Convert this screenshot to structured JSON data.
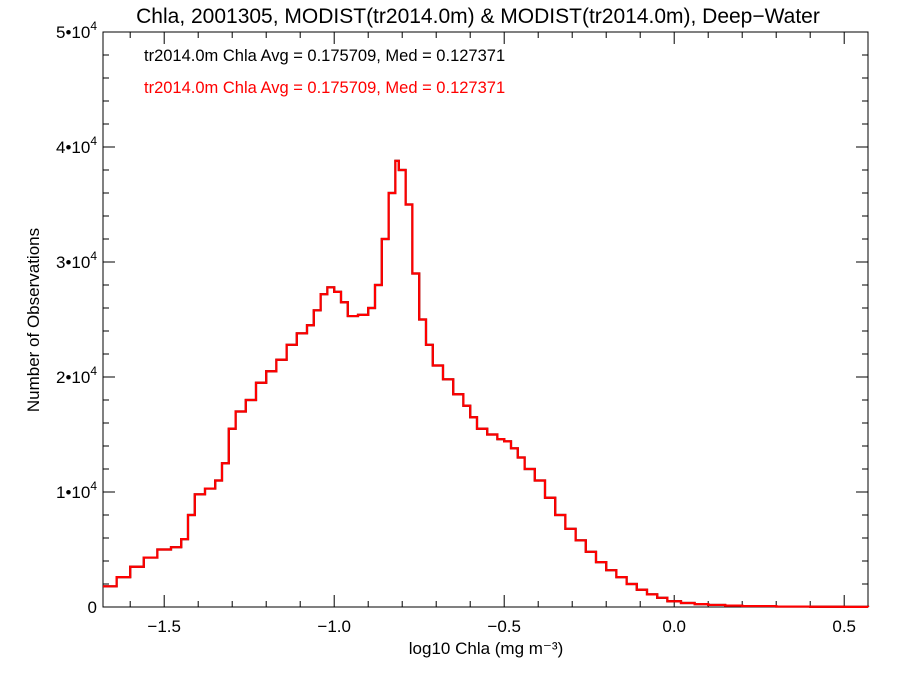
{
  "chart_data": {
    "type": "line",
    "title": "Chla, 2001305, MODIST(tr2014.0m) & MODIST(tr2014.0m), Deep−Water",
    "xlabel": "log10 Chla (mg m⁻³)",
    "ylabel": "Number of Observations",
    "xlim": [
      -1.68,
      0.57
    ],
    "ylim": [
      0,
      50000
    ],
    "grid": false,
    "x_ticks": [
      {
        "value": -1.5,
        "label": "−1.5"
      },
      {
        "value": -1.0,
        "label": "−1.0"
      },
      {
        "value": -0.5,
        "label": "−0.5"
      },
      {
        "value": 0.0,
        "label": "0.0"
      },
      {
        "value": 0.5,
        "label": "0.5"
      }
    ],
    "y_ticks": [
      {
        "value": 0,
        "label": "0",
        "exp": ""
      },
      {
        "value": 10000,
        "label": "1•10",
        "exp": "4"
      },
      {
        "value": 20000,
        "label": "2•10",
        "exp": "4"
      },
      {
        "value": 30000,
        "label": "3•10",
        "exp": "4"
      },
      {
        "value": 40000,
        "label": "4•10",
        "exp": "4"
      },
      {
        "value": 50000,
        "label": "5•10",
        "exp": "4"
      }
    ],
    "annotations": [
      {
        "text": "tr2014.0m Chla Avg = 0.175709, Med = 0.127371",
        "color": "#000000"
      },
      {
        "text": "tr2014.0m Chla Avg = 0.175709, Med = 0.127371",
        "color": "#ff0000"
      }
    ],
    "series": [
      {
        "color": "#000000",
        "step": true,
        "points": [
          [
            -1.68,
            1800
          ],
          [
            -1.64,
            2600
          ],
          [
            -1.6,
            3500
          ],
          [
            -1.56,
            4300
          ],
          [
            -1.52,
            5000
          ],
          [
            -1.48,
            5200
          ],
          [
            -1.45,
            5900
          ],
          [
            -1.43,
            8000
          ],
          [
            -1.41,
            9800
          ],
          [
            -1.38,
            10300
          ],
          [
            -1.35,
            11000
          ],
          [
            -1.33,
            12500
          ],
          [
            -1.31,
            15500
          ],
          [
            -1.29,
            17000
          ],
          [
            -1.26,
            18000
          ],
          [
            -1.23,
            19500
          ],
          [
            -1.2,
            20500
          ],
          [
            -1.17,
            21500
          ],
          [
            -1.14,
            22800
          ],
          [
            -1.11,
            23800
          ],
          [
            -1.08,
            24500
          ],
          [
            -1.06,
            25800
          ],
          [
            -1.04,
            27200
          ],
          [
            -1.02,
            27800
          ],
          [
            -1.0,
            27400
          ],
          [
            -0.98,
            26500
          ],
          [
            -0.96,
            25300
          ],
          [
            -0.93,
            25400
          ],
          [
            -0.9,
            26000
          ],
          [
            -0.88,
            28000
          ],
          [
            -0.86,
            32000
          ],
          [
            -0.84,
            36000
          ],
          [
            -0.82,
            38800
          ],
          [
            -0.81,
            38000
          ],
          [
            -0.79,
            35000
          ],
          [
            -0.77,
            29000
          ],
          [
            -0.75,
            25000
          ],
          [
            -0.73,
            22800
          ],
          [
            -0.71,
            21000
          ],
          [
            -0.68,
            19800
          ],
          [
            -0.65,
            18500
          ],
          [
            -0.62,
            17500
          ],
          [
            -0.6,
            16500
          ],
          [
            -0.58,
            15500
          ],
          [
            -0.55,
            15000
          ],
          [
            -0.52,
            14600
          ],
          [
            -0.5,
            14400
          ],
          [
            -0.48,
            13800
          ],
          [
            -0.46,
            13000
          ],
          [
            -0.44,
            12000
          ],
          [
            -0.41,
            11000
          ],
          [
            -0.38,
            9500
          ],
          [
            -0.35,
            8000
          ],
          [
            -0.32,
            6800
          ],
          [
            -0.29,
            5800
          ],
          [
            -0.26,
            4800
          ],
          [
            -0.23,
            3900
          ],
          [
            -0.2,
            3200
          ],
          [
            -0.17,
            2600
          ],
          [
            -0.14,
            2000
          ],
          [
            -0.11,
            1500
          ],
          [
            -0.08,
            1100
          ],
          [
            -0.05,
            800
          ],
          [
            -0.02,
            500
          ],
          [
            0.02,
            350
          ],
          [
            0.06,
            250
          ],
          [
            0.1,
            180
          ],
          [
            0.15,
            120
          ],
          [
            0.2,
            80
          ],
          [
            0.3,
            40
          ],
          [
            0.4,
            20
          ],
          [
            0.5,
            8
          ],
          [
            0.57,
            5
          ]
        ]
      },
      {
        "color": "#ff0000",
        "step": true,
        "points": [
          [
            -1.68,
            1800
          ],
          [
            -1.64,
            2600
          ],
          [
            -1.6,
            3500
          ],
          [
            -1.56,
            4300
          ],
          [
            -1.52,
            5000
          ],
          [
            -1.48,
            5200
          ],
          [
            -1.45,
            5900
          ],
          [
            -1.43,
            8000
          ],
          [
            -1.41,
            9800
          ],
          [
            -1.38,
            10300
          ],
          [
            -1.35,
            11000
          ],
          [
            -1.33,
            12500
          ],
          [
            -1.31,
            15500
          ],
          [
            -1.29,
            17000
          ],
          [
            -1.26,
            18000
          ],
          [
            -1.23,
            19500
          ],
          [
            -1.2,
            20500
          ],
          [
            -1.17,
            21500
          ],
          [
            -1.14,
            22800
          ],
          [
            -1.11,
            23800
          ],
          [
            -1.08,
            24500
          ],
          [
            -1.06,
            25800
          ],
          [
            -1.04,
            27200
          ],
          [
            -1.02,
            27800
          ],
          [
            -1.0,
            27400
          ],
          [
            -0.98,
            26500
          ],
          [
            -0.96,
            25300
          ],
          [
            -0.93,
            25400
          ],
          [
            -0.9,
            26000
          ],
          [
            -0.88,
            28000
          ],
          [
            -0.86,
            32000
          ],
          [
            -0.84,
            36000
          ],
          [
            -0.82,
            38800
          ],
          [
            -0.81,
            38000
          ],
          [
            -0.79,
            35000
          ],
          [
            -0.77,
            29000
          ],
          [
            -0.75,
            25000
          ],
          [
            -0.73,
            22800
          ],
          [
            -0.71,
            21000
          ],
          [
            -0.68,
            19800
          ],
          [
            -0.65,
            18500
          ],
          [
            -0.62,
            17500
          ],
          [
            -0.6,
            16500
          ],
          [
            -0.58,
            15500
          ],
          [
            -0.55,
            15000
          ],
          [
            -0.52,
            14600
          ],
          [
            -0.5,
            14400
          ],
          [
            -0.48,
            13800
          ],
          [
            -0.46,
            13000
          ],
          [
            -0.44,
            12000
          ],
          [
            -0.41,
            11000
          ],
          [
            -0.38,
            9500
          ],
          [
            -0.35,
            8000
          ],
          [
            -0.32,
            6800
          ],
          [
            -0.29,
            5800
          ],
          [
            -0.26,
            4800
          ],
          [
            -0.23,
            3900
          ],
          [
            -0.2,
            3200
          ],
          [
            -0.17,
            2600
          ],
          [
            -0.14,
            2000
          ],
          [
            -0.11,
            1500
          ],
          [
            -0.08,
            1100
          ],
          [
            -0.05,
            800
          ],
          [
            -0.02,
            500
          ],
          [
            0.02,
            350
          ],
          [
            0.06,
            250
          ],
          [
            0.1,
            180
          ],
          [
            0.15,
            120
          ],
          [
            0.2,
            80
          ],
          [
            0.3,
            40
          ],
          [
            0.4,
            20
          ],
          [
            0.5,
            8
          ],
          [
            0.57,
            5
          ]
        ]
      }
    ]
  }
}
